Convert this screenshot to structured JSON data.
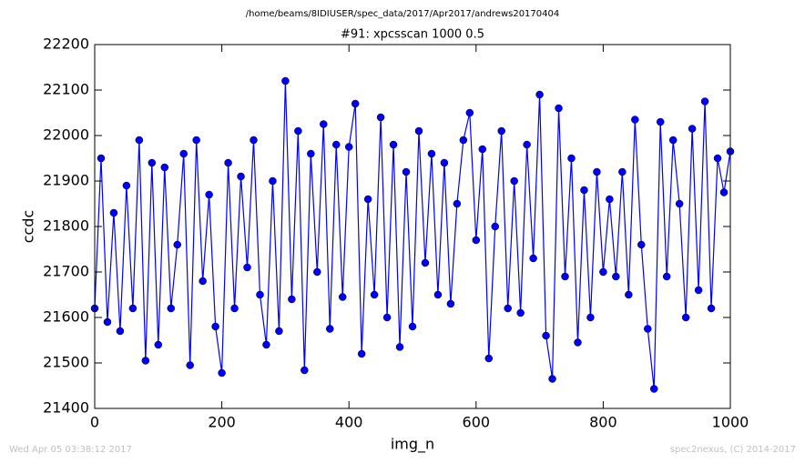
{
  "chart_data": {
    "type": "line",
    "suptitle": "/home/beams/8IDIUSER/spec_data/2017/Apr2017/andrews20170404",
    "title": "#91: xpcsscan 1000 0.5",
    "xlabel": "img_n",
    "ylabel": "ccdc",
    "footer_left": "Wed Apr 05 03:38:12 2017",
    "footer_right": "spec2nexus, (C) 2014-2017",
    "x": [
      0,
      10,
      20,
      30,
      40,
      50,
      60,
      70,
      80,
      90,
      100,
      110,
      120,
      130,
      140,
      150,
      160,
      170,
      180,
      190,
      200,
      210,
      220,
      230,
      240,
      250,
      260,
      270,
      280,
      290,
      300,
      310,
      320,
      330,
      340,
      350,
      360,
      370,
      380,
      390,
      400,
      410,
      420,
      430,
      440,
      450,
      460,
      470,
      480,
      490,
      500,
      510,
      520,
      530,
      540,
      550,
      560,
      570,
      580,
      590,
      600,
      610,
      620,
      630,
      640,
      650,
      660,
      670,
      680,
      690,
      700,
      710,
      720,
      730,
      740,
      750,
      760,
      770,
      780,
      790,
      800,
      810,
      820,
      830,
      840,
      850,
      860,
      870,
      880,
      890,
      900,
      910,
      920,
      930,
      940,
      950,
      960,
      970,
      980,
      990,
      1000
    ],
    "series": [
      {
        "name": "ccdc",
        "color": "#0000ff",
        "marker": "circle",
        "values": [
          21620,
          21950,
          21590,
          21830,
          21570,
          21890,
          21620,
          21990,
          21505,
          21940,
          21540,
          21930,
          21620,
          21760,
          21960,
          21495,
          21990,
          21680,
          21870,
          21580,
          21478,
          21940,
          21620,
          21910,
          21710,
          21990,
          21650,
          21540,
          21900,
          21570,
          22120,
          21640,
          22010,
          21484,
          21960,
          21700,
          22025,
          21575,
          21980,
          21645,
          21975,
          22070,
          21520,
          21860,
          21650,
          22040,
          21600,
          21980,
          21535,
          21920,
          21580,
          22010,
          21720,
          21960,
          21650,
          21940,
          21630,
          21850,
          21990,
          22050,
          21770,
          21970,
          21510,
          21800,
          22010,
          21620,
          21900,
          21610,
          21980,
          21730,
          22090,
          21560,
          21465,
          22060,
          21690,
          21950,
          21545,
          21880,
          21600,
          21920,
          21700,
          21860,
          21690,
          21920,
          21650,
          22035,
          21760,
          21575,
          21443,
          22030,
          21690,
          21990,
          21850,
          21600,
          22015,
          21660,
          22075,
          21620,
          21950,
          21875,
          21965
        ]
      }
    ],
    "xlim": [
      0,
      1000
    ],
    "xticks": [
      0,
      200,
      400,
      600,
      800,
      1000
    ],
    "ylim": [
      21400,
      22200
    ],
    "yticks": [
      21400,
      21500,
      21600,
      21700,
      21800,
      21900,
      22000,
      22100,
      22200
    ],
    "grid": false
  }
}
